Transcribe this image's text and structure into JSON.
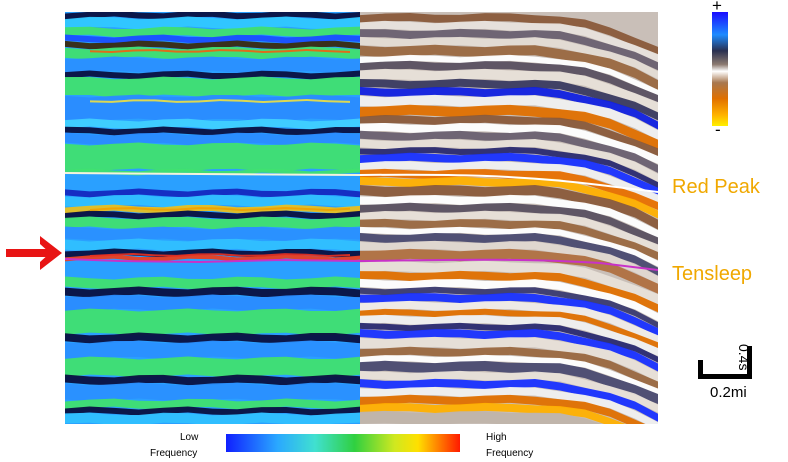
{
  "horizons": {
    "red_peak": "Red Peak",
    "tensleep": "Tensleep"
  },
  "amplitude_colorbar": {
    "top_label": "+",
    "bottom_label": "-"
  },
  "scale_bar": {
    "horizontal": "0.2mi",
    "vertical": "0.4s"
  },
  "frequency_colorbar": {
    "low_line1": "Low",
    "low_line2": "Frequency",
    "high_line1": "High",
    "high_line2": "Frequency"
  },
  "colors": {
    "horizon_label": "#f0a800",
    "arrow": "#e81414",
    "red_peak_horizon": "#f4f2dc",
    "tensleep_horizon": "#c832c8"
  }
}
